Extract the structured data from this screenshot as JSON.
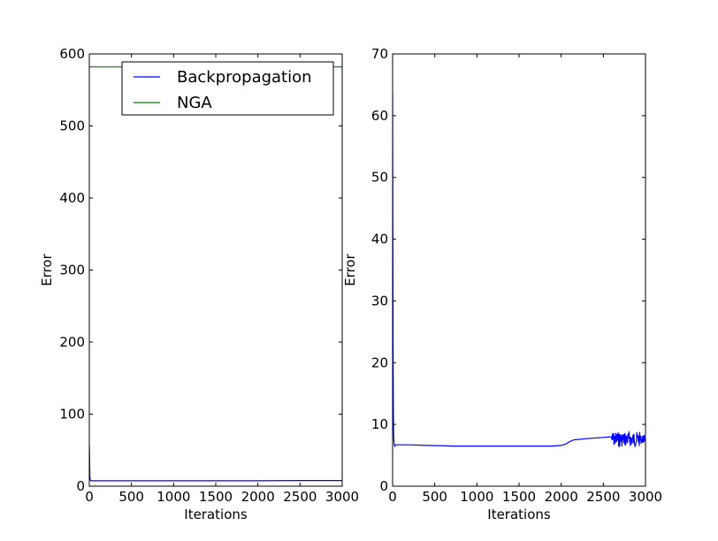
{
  "chart_data": [
    {
      "type": "line",
      "xlabel": "Iterations",
      "ylabel": "Error",
      "xlim": [
        0,
        3000
      ],
      "ylim": [
        0,
        600
      ],
      "xticks": [
        0,
        500,
        1000,
        1500,
        2000,
        2500,
        3000
      ],
      "yticks": [
        0,
        100,
        200,
        300,
        400,
        500,
        600
      ],
      "grid": false,
      "legend": "top-right",
      "series": [
        {
          "name": "Backpropagation",
          "color": "#0000ff",
          "x": [
            0,
            3,
            6,
            10,
            15,
            30,
            100,
            500,
            1000,
            1500,
            2000,
            2500,
            3000
          ],
          "y": [
            57,
            40,
            15,
            9,
            8,
            7.5,
            7.5,
            7.5,
            7.5,
            7.5,
            7.5,
            7.8,
            7.8
          ]
        },
        {
          "name": "NGA",
          "color": "#008000",
          "x": [
            0,
            3000
          ],
          "y": [
            582,
            582
          ]
        }
      ]
    },
    {
      "type": "line",
      "xlabel": "Iterations",
      "ylabel": "Error",
      "xlim": [
        0,
        3000
      ],
      "ylim": [
        0,
        70
      ],
      "xticks": [
        0,
        500,
        1000,
        1500,
        2000,
        2500,
        3000
      ],
      "yticks": [
        0,
        10,
        20,
        30,
        40,
        50,
        60,
        70
      ],
      "grid": false,
      "series": [
        {
          "color": "#0000ff",
          "x": [
            0,
            3,
            6,
            9,
            12,
            15,
            20,
            25,
            30,
            40,
            60,
            100,
            200,
            400,
            600,
            700,
            1000,
            1500,
            1900,
            2000,
            2050,
            2100,
            2150,
            2300,
            2500,
            2600
          ],
          "y": [
            63.5,
            40,
            20,
            12.5,
            9,
            7.5,
            6.8,
            6.5,
            6.6,
            6.7,
            6.7,
            6.7,
            6.7,
            6.6,
            6.55,
            6.5,
            6.5,
            6.5,
            6.5,
            6.6,
            6.8,
            7.2,
            7.5,
            7.7,
            7.9,
            8.0
          ],
          "noisy_segment": {
            "x_start": 2600,
            "x_end": 3000,
            "center": 7.6,
            "amplitude": 1.2
          }
        }
      ]
    }
  ]
}
